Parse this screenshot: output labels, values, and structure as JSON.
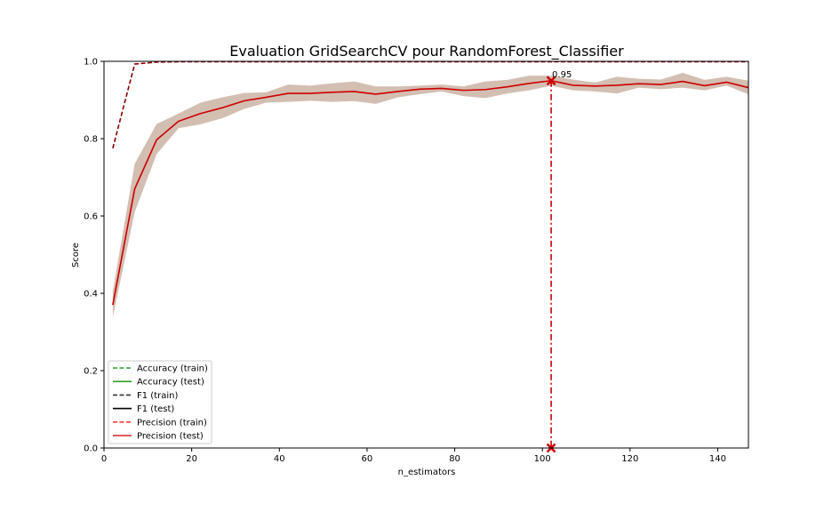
{
  "chart_data": {
    "type": "line",
    "title": "Evaluation GridSearchCV pour RandomForest_Classifier",
    "xlabel": "n_estimators",
    "ylabel": "Score",
    "xlim": [
      0,
      147
    ],
    "ylim": [
      0,
      1.0
    ],
    "xticks": [
      0,
      20,
      40,
      60,
      80,
      100,
      120,
      140
    ],
    "yticks": [
      0.0,
      0.2,
      0.4,
      0.6,
      0.8,
      1.0
    ],
    "xtick_labels": [
      "0",
      "20",
      "40",
      "60",
      "80",
      "100",
      "120",
      "140"
    ],
    "ytick_labels": [
      "0.0",
      "0.2",
      "0.4",
      "0.6",
      "0.8",
      "1.0"
    ],
    "grid": false,
    "legend_position": "lower-left",
    "legend": [
      {
        "label": "Accuracy (train)",
        "color": "#2ca02c",
        "dash": true
      },
      {
        "label": "Accuracy (test)",
        "color": "#2ca02c",
        "dash": false
      },
      {
        "label": "F1 (train)",
        "color": "#333333",
        "dash": true
      },
      {
        "label": "F1 (test)",
        "color": "#000000",
        "dash": false
      },
      {
        "label": "Precision (train)",
        "color": "#ff3b3b",
        "dash": true
      },
      {
        "label": "Precision (test)",
        "color": "#d62728",
        "dash": false
      }
    ],
    "x": [
      2,
      7,
      12,
      17,
      22,
      27,
      32,
      37,
      42,
      47,
      52,
      57,
      62,
      67,
      72,
      77,
      82,
      87,
      92,
      97,
      102,
      107,
      112,
      117,
      122,
      127,
      132,
      137,
      142,
      147
    ],
    "series": [
      {
        "name": "Precision (train)",
        "style": "dashed",
        "color": "#8b0000",
        "values": [
          0.775,
          0.993,
          0.998,
          0.999,
          0.999,
          0.999,
          0.999,
          0.999,
          0.999,
          0.999,
          0.999,
          0.999,
          0.999,
          0.999,
          0.999,
          0.999,
          0.999,
          0.999,
          0.999,
          0.999,
          0.999,
          0.999,
          0.999,
          0.999,
          0.999,
          0.999,
          0.999,
          0.999,
          0.999,
          0.999
        ]
      },
      {
        "name": "Precision (test)",
        "style": "solid",
        "color": "#cc0000",
        "band_color": "#c4a898",
        "values": [
          0.37,
          0.67,
          0.797,
          0.845,
          0.865,
          0.88,
          0.898,
          0.907,
          0.917,
          0.917,
          0.92,
          0.922,
          0.915,
          0.922,
          0.928,
          0.93,
          0.925,
          0.927,
          0.934,
          0.943,
          0.95,
          0.938,
          0.936,
          0.938,
          0.942,
          0.94,
          0.948,
          0.937,
          0.946,
          0.932
        ],
        "band_lower": [
          0.338,
          0.61,
          0.76,
          0.827,
          0.837,
          0.853,
          0.877,
          0.893,
          0.895,
          0.898,
          0.895,
          0.897,
          0.89,
          0.907,
          0.915,
          0.922,
          0.91,
          0.905,
          0.917,
          0.925,
          0.937,
          0.925,
          0.922,
          0.917,
          0.932,
          0.928,
          0.932,
          0.925,
          0.937,
          0.915
        ],
        "band_upper": [
          0.405,
          0.735,
          0.838,
          0.865,
          0.893,
          0.907,
          0.918,
          0.92,
          0.94,
          0.937,
          0.943,
          0.948,
          0.935,
          0.935,
          0.937,
          0.94,
          0.935,
          0.948,
          0.952,
          0.963,
          0.963,
          0.953,
          0.945,
          0.96,
          0.955,
          0.953,
          0.97,
          0.952,
          0.96,
          0.95
        ]
      }
    ],
    "best_point": {
      "x": 102,
      "y": 0.95,
      "label": "0.95",
      "color": "#cc0000"
    }
  }
}
